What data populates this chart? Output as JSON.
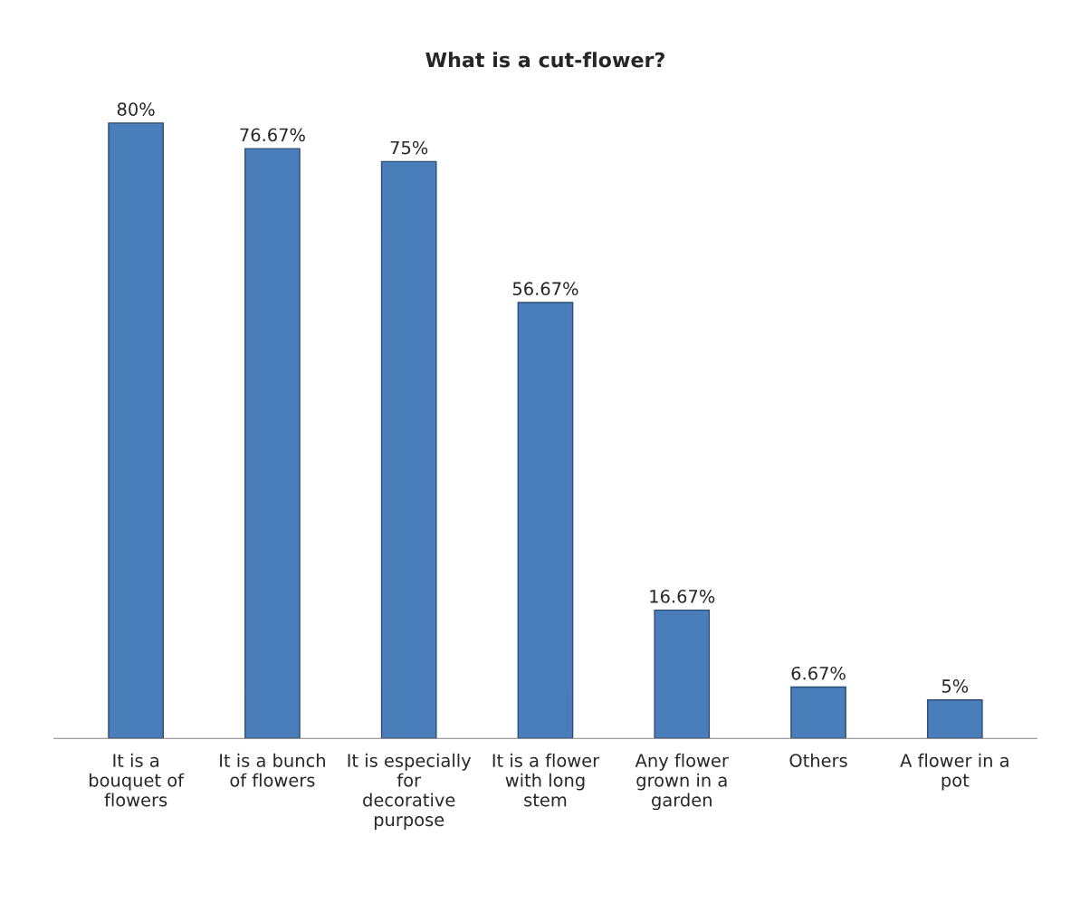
{
  "chart_data": {
    "type": "bar",
    "title": "What is a cut-flower?",
    "categories": [
      "It is a\nbouquet of\nflowers",
      "It is a bunch\nof flowers",
      "It is especially\nfor\ndecorative\npurpose",
      "It is a flower\nwith long\nstem",
      "Any flower\ngrown in a\ngarden",
      "Others",
      "A flower in a\npot"
    ],
    "values": [
      80,
      76.67,
      75,
      56.67,
      16.67,
      6.67,
      5
    ],
    "value_labels": [
      "80%",
      "76.67%",
      "75%",
      "56.67%",
      "16.67%",
      "6.67%",
      "5%"
    ],
    "color": "#4a7ebb",
    "grid": false,
    "legend": false
  }
}
